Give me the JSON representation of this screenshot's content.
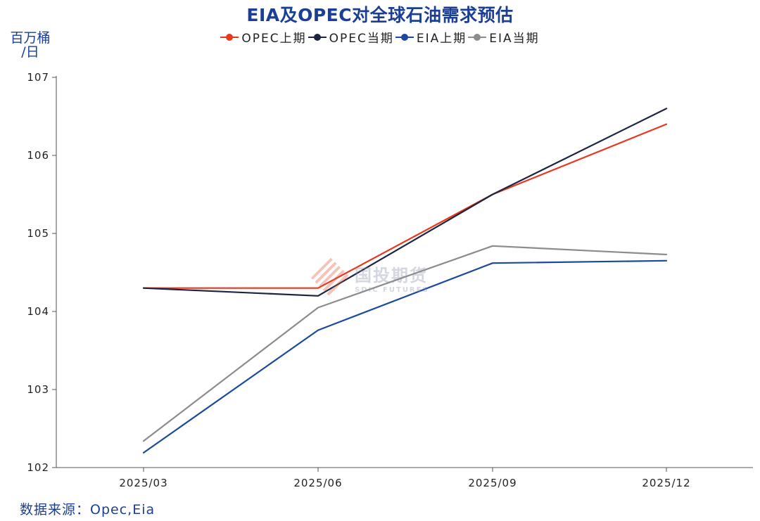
{
  "chart_data": {
    "type": "line",
    "title": "EIA及OPEC对全球石油需求预估",
    "ylabel": "百万桶/日",
    "ylabel_lines": [
      "百万桶",
      "/日"
    ],
    "xlabel": "",
    "categories": [
      "2025/03",
      "2025/06",
      "2025/09",
      "2025/12"
    ],
    "ylim": [
      102,
      107
    ],
    "yticks": [
      "102",
      "103",
      "104",
      "105",
      "106",
      "107"
    ],
    "series": [
      {
        "name": "OPEC上期",
        "color": "#e8381f",
        "values": [
          104.3,
          104.3,
          105.5,
          106.4
        ]
      },
      {
        "name": "OPEC当期",
        "color": "#1c2540",
        "values": [
          104.3,
          104.2,
          105.5,
          106.6
        ]
      },
      {
        "name": "EIA上期",
        "color": "#1b4a9c",
        "values": [
          102.19,
          103.76,
          104.62,
          104.65
        ]
      },
      {
        "name": "EIA当期",
        "color": "#8c8c8c",
        "values": [
          102.34,
          104.05,
          104.84,
          104.73
        ]
      }
    ],
    "source": "数据来源：Opec,Eia",
    "watermark": {
      "cn": "国投期货",
      "en": "SDIC FUTURES"
    }
  }
}
